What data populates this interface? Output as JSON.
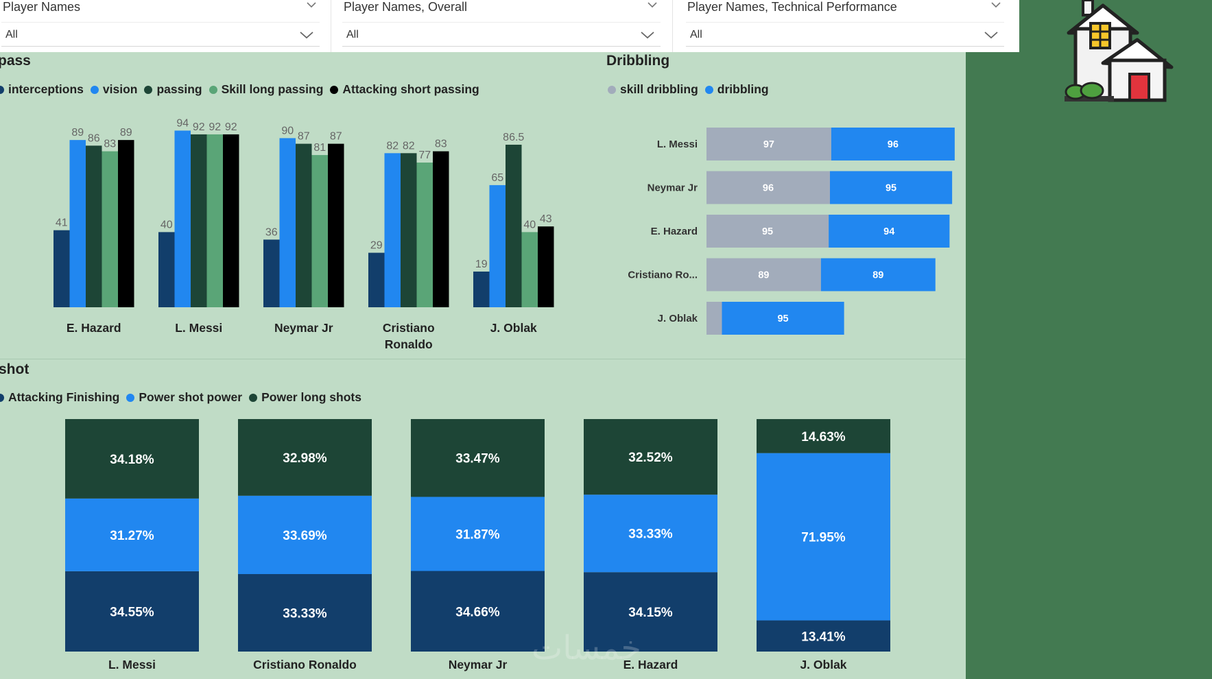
{
  "filters": [
    {
      "title": "Player Names",
      "value": "All"
    },
    {
      "title": "Player Names, Overall",
      "value": "All"
    },
    {
      "title": "Player Names, Technical Performance",
      "value": "All"
    }
  ],
  "colors": {
    "panel_bg": "#c0dcc6",
    "right_panel": "#437a51",
    "navy": "#123e6b",
    "bright_blue": "#2187f0",
    "dark_green": "#1d4536",
    "light_green": "#5aa577",
    "black": "#000000",
    "grey": "#a2acbb"
  },
  "watermark": "خمسات",
  "chart_data": [
    {
      "type": "bar",
      "title": "pass",
      "categories": [
        "E. Hazard",
        "L. Messi",
        "Neymar Jr",
        "Cristiano Ronaldo",
        "J. Oblak"
      ],
      "series": [
        {
          "name": "interceptions",
          "color": "#123e6b",
          "values": [
            41,
            40,
            36,
            29,
            19
          ]
        },
        {
          "name": "vision",
          "color": "#2187f0",
          "values": [
            89,
            94,
            90,
            82,
            65
          ]
        },
        {
          "name": "passing",
          "color": "#1d4536",
          "values": [
            86,
            92,
            87,
            82,
            86.5
          ]
        },
        {
          "name": "Skill long passing",
          "color": "#5aa577",
          "values": [
            83,
            92,
            81,
            77,
            40
          ]
        },
        {
          "name": "Attacking short passing",
          "color": "#000000",
          "values": [
            89,
            92,
            87,
            83,
            43
          ]
        }
      ],
      "ylim": [
        0,
        100
      ]
    },
    {
      "type": "bar",
      "orientation": "horizontal-stacked",
      "title": "Dribbling",
      "categories": [
        "L. Messi",
        "Neymar Jr",
        "E. Hazard",
        "Cristiano Ro...",
        "J. Oblak"
      ],
      "series": [
        {
          "name": "skill dribbling",
          "color": "#a2acbb",
          "values": [
            97,
            96,
            95,
            89,
            12
          ]
        },
        {
          "name": "dribbling",
          "color": "#2187f0",
          "values": [
            96,
            95,
            94,
            89,
            95
          ]
        }
      ],
      "labels": [
        [
          "97",
          "96",
          "95",
          "89",
          ""
        ],
        [
          "96",
          "95",
          "94",
          "89",
          "95"
        ]
      ]
    },
    {
      "type": "bar",
      "orientation": "100%-stacked",
      "title": "shot",
      "categories": [
        "L. Messi",
        "Cristiano Ronaldo",
        "Neymar Jr",
        "E. Hazard",
        "J. Oblak"
      ],
      "series": [
        {
          "name": "Attacking Finishing",
          "color": "#123e6b",
          "values": [
            34.55,
            33.33,
            34.66,
            34.15,
            13.41
          ]
        },
        {
          "name": "Power shot power",
          "color": "#2187f0",
          "values": [
            31.27,
            33.69,
            31.87,
            33.33,
            71.95
          ]
        },
        {
          "name": "Power long shots",
          "color": "#1d4536",
          "values": [
            34.18,
            32.98,
            33.47,
            32.52,
            14.63
          ]
        }
      ],
      "labels": [
        [
          "34.55%",
          "33.33%",
          "34.66%",
          "34.15%",
          "13.41%"
        ],
        [
          "31.27%",
          "33.69%",
          "31.87%",
          "33.33%",
          "71.95%"
        ],
        [
          "34.18%",
          "32.98%",
          "33.47%",
          "32.52%",
          "14.63%"
        ]
      ]
    }
  ]
}
